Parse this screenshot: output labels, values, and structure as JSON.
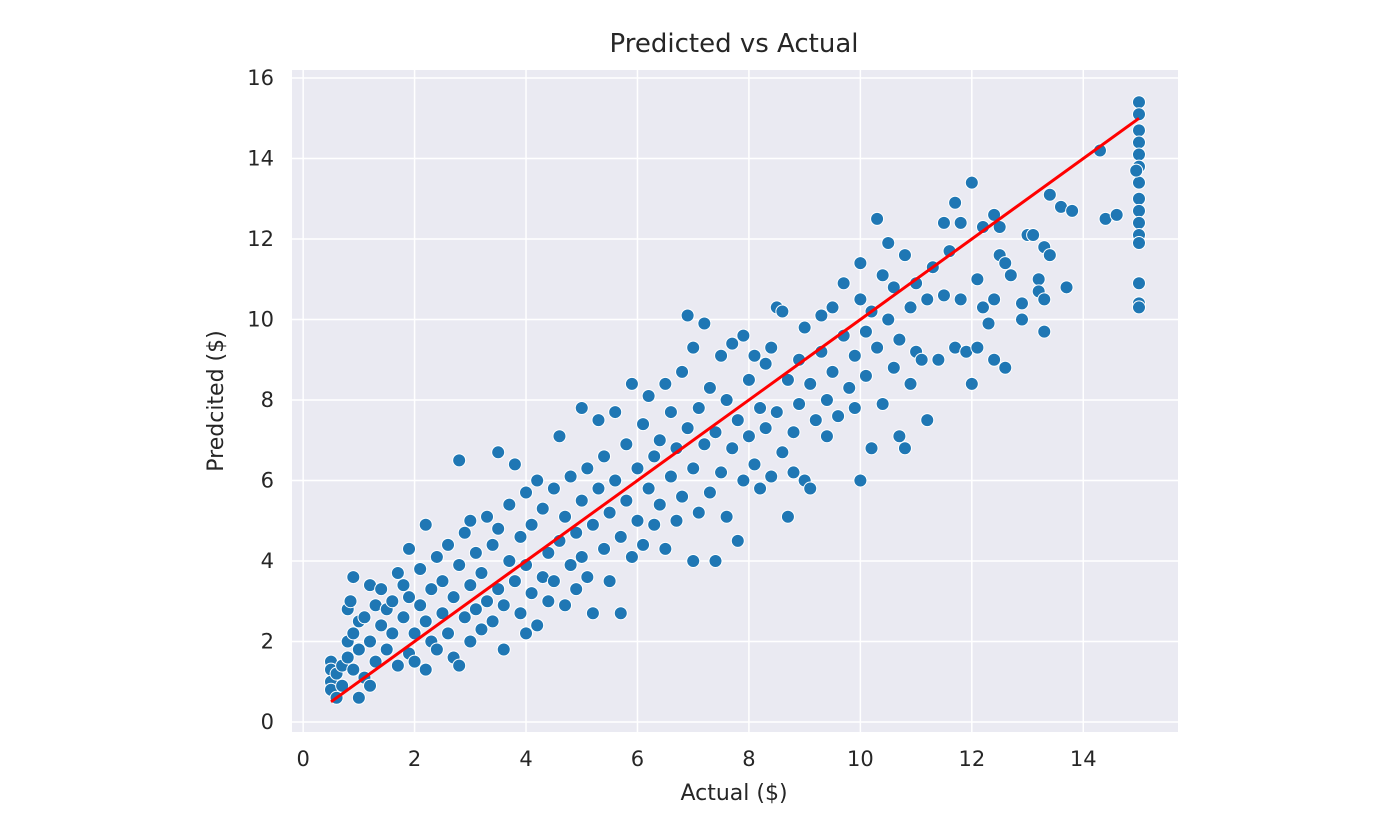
{
  "chart_data": {
    "type": "scatter",
    "title": "Predicted vs Actual",
    "xlabel": "Actual ($)",
    "ylabel": "Predcited ($)",
    "xlim": [
      -0.2,
      15.7
    ],
    "ylim": [
      -0.25,
      16.2
    ],
    "xticks": [
      0,
      2,
      4,
      6,
      8,
      10,
      12,
      14
    ],
    "yticks": [
      0,
      2,
      4,
      6,
      8,
      10,
      12,
      14,
      16
    ],
    "grid": true,
    "background_color": "#eaeaf2",
    "point_color": "#1f77b4",
    "line_color": "#ff0000",
    "reference_line": {
      "x": [
        0.5,
        15.0
      ],
      "y": [
        0.5,
        15.0
      ]
    },
    "series": [
      {
        "points": [
          [
            0.5,
            1.5
          ],
          [
            0.5,
            1.3
          ],
          [
            0.5,
            1.0
          ],
          [
            0.5,
            0.8
          ],
          [
            0.6,
            0.6
          ],
          [
            0.6,
            1.2
          ],
          [
            0.7,
            1.4
          ],
          [
            0.7,
            0.9
          ],
          [
            0.8,
            2.0
          ],
          [
            0.8,
            2.8
          ],
          [
            0.8,
            1.6
          ],
          [
            0.9,
            3.6
          ],
          [
            0.85,
            3.0
          ],
          [
            0.9,
            2.2
          ],
          [
            0.9,
            1.3
          ],
          [
            1.0,
            0.6
          ],
          [
            1.0,
            2.5
          ],
          [
            1.0,
            1.8
          ],
          [
            1.1,
            2.6
          ],
          [
            1.1,
            1.1
          ],
          [
            1.2,
            3.4
          ],
          [
            1.2,
            2.0
          ],
          [
            1.2,
            0.9
          ],
          [
            1.3,
            2.9
          ],
          [
            1.3,
            1.5
          ],
          [
            1.4,
            3.3
          ],
          [
            1.4,
            2.4
          ],
          [
            1.5,
            1.8
          ],
          [
            1.5,
            2.8
          ],
          [
            1.6,
            2.2
          ],
          [
            1.6,
            3.0
          ],
          [
            1.7,
            1.4
          ],
          [
            1.7,
            3.7
          ],
          [
            1.8,
            3.4
          ],
          [
            1.8,
            2.6
          ],
          [
            1.9,
            1.7
          ],
          [
            1.9,
            3.1
          ],
          [
            1.9,
            4.3
          ],
          [
            2.0,
            2.2
          ],
          [
            2.0,
            1.5
          ],
          [
            2.1,
            3.8
          ],
          [
            2.1,
            2.9
          ],
          [
            2.2,
            1.3
          ],
          [
            2.2,
            2.5
          ],
          [
            2.2,
            4.9
          ],
          [
            2.3,
            3.3
          ],
          [
            2.3,
            2.0
          ],
          [
            2.4,
            4.1
          ],
          [
            2.4,
            1.8
          ],
          [
            2.5,
            3.5
          ],
          [
            2.5,
            2.7
          ],
          [
            2.6,
            2.2
          ],
          [
            2.6,
            4.4
          ],
          [
            2.7,
            3.1
          ],
          [
            2.7,
            1.6
          ],
          [
            2.8,
            1.4
          ],
          [
            2.8,
            6.5
          ],
          [
            2.8,
            3.9
          ],
          [
            2.9,
            2.6
          ],
          [
            2.9,
            4.7
          ],
          [
            3.0,
            2.0
          ],
          [
            3.0,
            3.4
          ],
          [
            3.0,
            5.0
          ],
          [
            3.1,
            2.8
          ],
          [
            3.1,
            4.2
          ],
          [
            3.2,
            2.3
          ],
          [
            3.2,
            3.7
          ],
          [
            3.3,
            5.1
          ],
          [
            3.3,
            3.0
          ],
          [
            3.4,
            4.4
          ],
          [
            3.4,
            2.5
          ],
          [
            3.5,
            6.7
          ],
          [
            3.5,
            3.3
          ],
          [
            3.5,
            4.8
          ],
          [
            3.6,
            1.8
          ],
          [
            3.6,
            2.9
          ],
          [
            3.7,
            4.0
          ],
          [
            3.7,
            5.4
          ],
          [
            3.8,
            3.5
          ],
          [
            3.8,
            6.4
          ],
          [
            3.9,
            2.7
          ],
          [
            3.9,
            4.6
          ],
          [
            4.0,
            2.2
          ],
          [
            4.0,
            3.9
          ],
          [
            4.0,
            5.7
          ],
          [
            4.1,
            3.2
          ],
          [
            4.1,
            4.9
          ],
          [
            4.2,
            6.0
          ],
          [
            4.2,
            2.4
          ],
          [
            4.3,
            3.6
          ],
          [
            4.3,
            5.3
          ],
          [
            4.4,
            4.2
          ],
          [
            4.4,
            3.0
          ],
          [
            4.5,
            5.8
          ],
          [
            4.5,
            3.5
          ],
          [
            4.6,
            7.1
          ],
          [
            4.6,
            4.5
          ],
          [
            4.7,
            2.9
          ],
          [
            4.7,
            5.1
          ],
          [
            4.8,
            6.1
          ],
          [
            4.8,
            3.9
          ],
          [
            4.9,
            4.7
          ],
          [
            4.9,
            3.3
          ],
          [
            5.0,
            7.8
          ],
          [
            5.0,
            5.5
          ],
          [
            5.0,
            4.1
          ],
          [
            5.1,
            6.3
          ],
          [
            5.1,
            3.6
          ],
          [
            5.2,
            4.9
          ],
          [
            5.2,
            2.7
          ],
          [
            5.3,
            5.8
          ],
          [
            5.3,
            7.5
          ],
          [
            5.4,
            4.3
          ],
          [
            5.4,
            6.6
          ],
          [
            5.5,
            3.5
          ],
          [
            5.5,
            5.2
          ],
          [
            5.6,
            7.7
          ],
          [
            5.6,
            6.0
          ],
          [
            5.7,
            4.6
          ],
          [
            5.7,
            2.7
          ],
          [
            5.8,
            5.5
          ],
          [
            5.8,
            6.9
          ],
          [
            5.9,
            8.4
          ],
          [
            5.9,
            4.1
          ],
          [
            6.0,
            6.3
          ],
          [
            6.0,
            5.0
          ],
          [
            6.1,
            7.4
          ],
          [
            6.1,
            4.4
          ],
          [
            6.2,
            5.8
          ],
          [
            6.2,
            8.1
          ],
          [
            6.3,
            6.6
          ],
          [
            6.3,
            4.9
          ],
          [
            6.4,
            7.0
          ],
          [
            6.4,
            5.4
          ],
          [
            6.5,
            8.4
          ],
          [
            6.5,
            4.3
          ],
          [
            6.6,
            6.1
          ],
          [
            6.6,
            7.7
          ],
          [
            6.7,
            5.0
          ],
          [
            6.7,
            6.8
          ],
          [
            6.8,
            8.7
          ],
          [
            6.8,
            5.6
          ],
          [
            6.9,
            10.1
          ],
          [
            6.9,
            7.3
          ],
          [
            7.0,
            4.0
          ],
          [
            7.0,
            6.3
          ],
          [
            7.0,
            9.3
          ],
          [
            7.1,
            7.8
          ],
          [
            7.1,
            5.2
          ],
          [
            7.2,
            9.9
          ],
          [
            7.2,
            6.9
          ],
          [
            7.3,
            8.3
          ],
          [
            7.3,
            5.7
          ],
          [
            7.4,
            4.0
          ],
          [
            7.4,
            7.2
          ],
          [
            7.5,
            9.1
          ],
          [
            7.5,
            6.2
          ],
          [
            7.6,
            8.0
          ],
          [
            7.6,
            5.1
          ],
          [
            7.7,
            9.4
          ],
          [
            7.7,
            6.8
          ],
          [
            7.8,
            7.5
          ],
          [
            7.8,
            4.5
          ],
          [
            7.9,
            9.6
          ],
          [
            7.9,
            6.0
          ],
          [
            8.0,
            8.5
          ],
          [
            8.0,
            7.1
          ],
          [
            8.1,
            9.1
          ],
          [
            8.1,
            6.4
          ],
          [
            8.2,
            7.8
          ],
          [
            8.2,
            5.8
          ],
          [
            8.3,
            8.9
          ],
          [
            8.3,
            7.3
          ],
          [
            8.4,
            6.1
          ],
          [
            8.4,
            9.3
          ],
          [
            8.5,
            10.3
          ],
          [
            8.5,
            7.7
          ],
          [
            8.6,
            10.2
          ],
          [
            8.6,
            6.7
          ],
          [
            8.7,
            5.1
          ],
          [
            8.7,
            8.5
          ],
          [
            8.8,
            7.2
          ],
          [
            8.8,
            6.2
          ],
          [
            8.9,
            9.0
          ],
          [
            8.9,
            7.9
          ],
          [
            9.0,
            6.0
          ],
          [
            9.0,
            9.8
          ],
          [
            9.1,
            8.4
          ],
          [
            9.1,
            5.8
          ],
          [
            9.2,
            7.5
          ],
          [
            9.3,
            9.2
          ],
          [
            9.3,
            10.1
          ],
          [
            9.4,
            8.0
          ],
          [
            9.4,
            7.1
          ],
          [
            9.5,
            10.3
          ],
          [
            9.5,
            8.7
          ],
          [
            9.6,
            7.6
          ],
          [
            9.7,
            9.6
          ],
          [
            9.7,
            10.9
          ],
          [
            9.8,
            8.3
          ],
          [
            9.9,
            9.1
          ],
          [
            9.9,
            7.8
          ],
          [
            10.0,
            6.0
          ],
          [
            10.0,
            10.5
          ],
          [
            10.0,
            11.4
          ],
          [
            10.1,
            9.7
          ],
          [
            10.1,
            8.6
          ],
          [
            10.2,
            6.8
          ],
          [
            10.2,
            10.2
          ],
          [
            10.3,
            12.5
          ],
          [
            10.3,
            9.3
          ],
          [
            10.4,
            11.1
          ],
          [
            10.4,
            7.9
          ],
          [
            10.5,
            10.0
          ],
          [
            10.5,
            11.9
          ],
          [
            10.6,
            8.8
          ],
          [
            10.6,
            10.8
          ],
          [
            10.7,
            7.1
          ],
          [
            10.7,
            9.5
          ],
          [
            10.8,
            11.6
          ],
          [
            10.8,
            6.8
          ],
          [
            10.9,
            10.3
          ],
          [
            10.9,
            8.4
          ],
          [
            11.0,
            9.2
          ],
          [
            11.0,
            10.9
          ],
          [
            11.1,
            9.0
          ],
          [
            11.2,
            7.5
          ],
          [
            11.2,
            10.5
          ],
          [
            11.3,
            11.3
          ],
          [
            11.4,
            9.0
          ],
          [
            11.5,
            12.4
          ],
          [
            11.5,
            10.6
          ],
          [
            11.6,
            11.7
          ],
          [
            11.7,
            12.9
          ],
          [
            11.7,
            9.3
          ],
          [
            11.8,
            12.4
          ],
          [
            11.8,
            10.5
          ],
          [
            11.9,
            9.2
          ],
          [
            12.0,
            13.4
          ],
          [
            12.0,
            8.4
          ],
          [
            12.1,
            11.0
          ],
          [
            12.1,
            9.3
          ],
          [
            12.2,
            12.3
          ],
          [
            12.2,
            10.3
          ],
          [
            12.3,
            9.9
          ],
          [
            12.4,
            12.6
          ],
          [
            12.4,
            10.5
          ],
          [
            12.4,
            9.0
          ],
          [
            12.5,
            12.3
          ],
          [
            12.5,
            11.6
          ],
          [
            12.6,
            11.4
          ],
          [
            12.6,
            8.8
          ],
          [
            12.7,
            11.1
          ],
          [
            12.9,
            10.4
          ],
          [
            12.9,
            10.0
          ],
          [
            13.0,
            12.1
          ],
          [
            13.1,
            12.1
          ],
          [
            13.2,
            11.0
          ],
          [
            13.2,
            10.7
          ],
          [
            13.3,
            11.8
          ],
          [
            13.3,
            10.5
          ],
          [
            13.3,
            9.7
          ],
          [
            13.4,
            11.6
          ],
          [
            13.4,
            13.1
          ],
          [
            13.6,
            12.8
          ],
          [
            13.7,
            10.8
          ],
          [
            13.8,
            12.7
          ],
          [
            14.3,
            14.2
          ],
          [
            14.4,
            12.5
          ],
          [
            14.6,
            12.6
          ],
          [
            15.0,
            15.4
          ],
          [
            15.0,
            15.1
          ],
          [
            15.0,
            14.7
          ],
          [
            15.0,
            14.4
          ],
          [
            15.0,
            14.1
          ],
          [
            15.0,
            13.8
          ],
          [
            15.0,
            13.4
          ],
          [
            15.0,
            13.0
          ],
          [
            15.0,
            12.7
          ],
          [
            15.0,
            12.4
          ],
          [
            15.0,
            12.1
          ],
          [
            15.0,
            11.9
          ],
          [
            15.0,
            10.9
          ],
          [
            15.0,
            10.4
          ],
          [
            15.0,
            10.3
          ],
          [
            14.95,
            13.7
          ]
        ]
      }
    ]
  }
}
